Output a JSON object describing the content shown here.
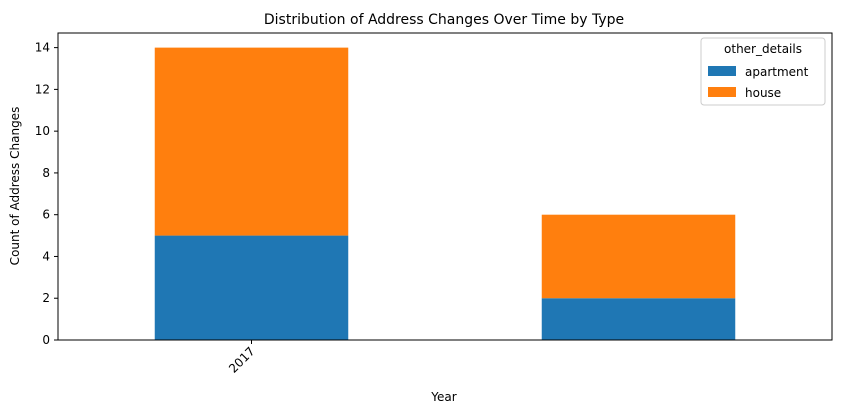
{
  "chart_data": {
    "type": "bar",
    "stacked": true,
    "title": "Distribution of Address Changes Over Time by Type",
    "xlabel": "Year",
    "ylabel": "Count of Address Changes",
    "categories": [
      "2017",
      ""
    ],
    "series": [
      {
        "name": "apartment",
        "values": [
          5,
          2
        ],
        "color": "#1f77b4"
      },
      {
        "name": "house",
        "values": [
          9,
          4
        ],
        "color": "#ff7f0e"
      }
    ],
    "ylim": [
      0,
      14.7
    ],
    "yticks": [
      0,
      2,
      4,
      6,
      8,
      10,
      12,
      14
    ],
    "grid": false,
    "legend": {
      "title": "other_details",
      "placement": "top-right"
    }
  }
}
